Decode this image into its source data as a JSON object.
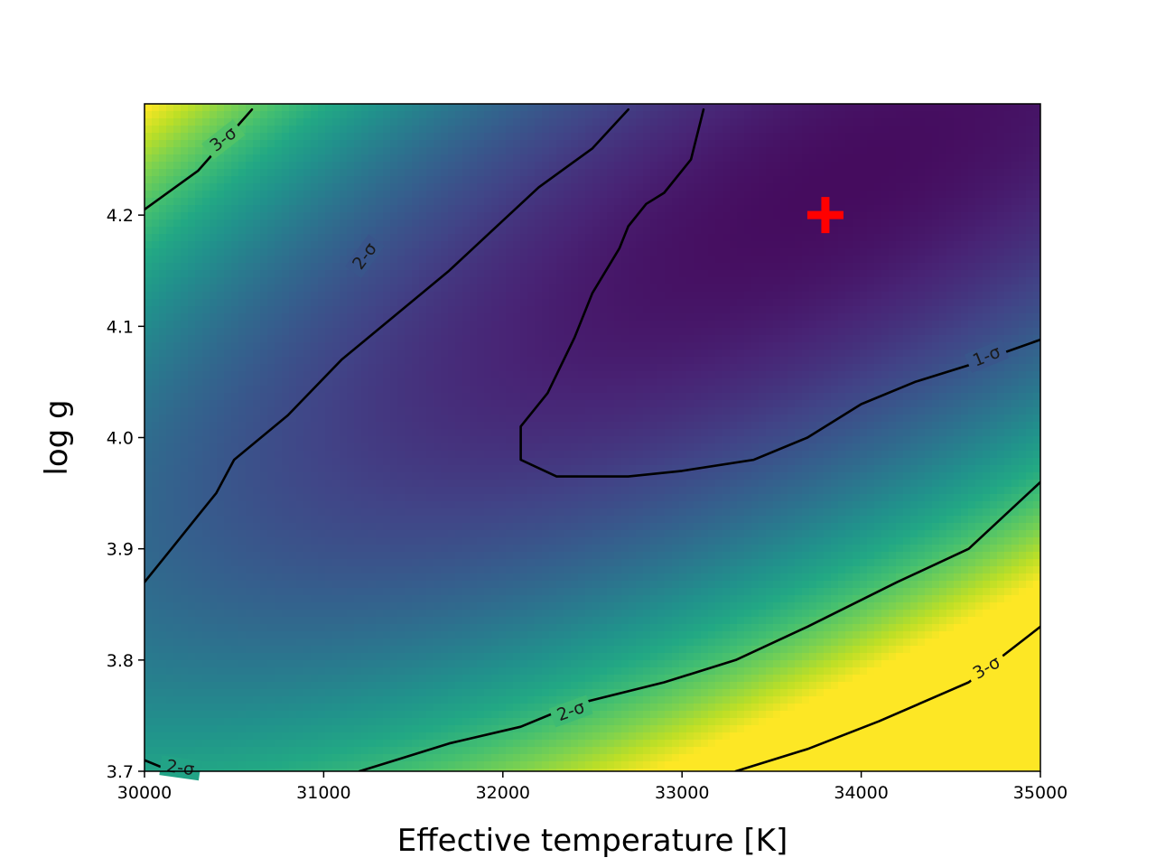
{
  "chart_data": {
    "type": "heatmap",
    "title": "",
    "xlabel": "Effective temperature [K]",
    "ylabel": "log g",
    "xlim": [
      30000,
      35000
    ],
    "ylim": [
      3.7,
      4.3
    ],
    "colormap": "viridis",
    "grid": false,
    "x_ticks": [
      30000,
      31000,
      32000,
      33000,
      34000,
      35000
    ],
    "y_ticks": [
      3.7,
      3.8,
      3.9,
      4.0,
      4.1,
      4.2
    ],
    "x_tick_labels": [
      "30000",
      "31000",
      "32000",
      "33000",
      "34000",
      "35000"
    ],
    "y_tick_labels": [
      "3.7",
      "3.8",
      "3.9",
      "4.0",
      "4.1",
      "4.2"
    ],
    "minimum_marker": {
      "x": 33800,
      "y": 4.2,
      "symbol": "plus",
      "color": "#ff0000"
    },
    "contours": [
      {
        "level": "1-σ",
        "points": [
          [
            33120,
            4.295
          ],
          [
            33050,
            4.25
          ],
          [
            32900,
            4.22
          ],
          [
            32800,
            4.21
          ],
          [
            32700,
            4.19
          ],
          [
            32650,
            4.17
          ],
          [
            32500,
            4.13
          ],
          [
            32400,
            4.09
          ],
          [
            32250,
            4.04
          ],
          [
            32100,
            4.01
          ],
          [
            32100,
            3.98
          ],
          [
            32300,
            3.965
          ],
          [
            32700,
            3.965
          ],
          [
            33000,
            3.97
          ],
          [
            33400,
            3.98
          ],
          [
            33700,
            4.0
          ],
          [
            34000,
            4.03
          ],
          [
            34300,
            4.05
          ],
          [
            34600,
            4.065
          ],
          [
            35000,
            4.088
          ]
        ]
      },
      {
        "level": "2-σ",
        "points": [
          [
            30000,
            3.87
          ],
          [
            30150,
            3.9
          ],
          [
            30300,
            3.93
          ],
          [
            30400,
            3.95
          ],
          [
            30500,
            3.98
          ],
          [
            30800,
            4.02
          ],
          [
            31100,
            4.07
          ],
          [
            31400,
            4.11
          ],
          [
            31700,
            4.15
          ],
          [
            32000,
            4.195
          ],
          [
            32200,
            4.225
          ],
          [
            32500,
            4.26
          ],
          [
            32700,
            4.295
          ]
        ]
      },
      {
        "level": "2-σ",
        "points": [
          [
            31200,
            3.7
          ],
          [
            31400,
            3.71
          ],
          [
            31700,
            3.725
          ],
          [
            32100,
            3.74
          ],
          [
            32400,
            3.76
          ],
          [
            32900,
            3.78
          ],
          [
            33300,
            3.8
          ],
          [
            33700,
            3.83
          ],
          [
            34200,
            3.87
          ],
          [
            34600,
            3.9
          ],
          [
            35000,
            3.96
          ]
        ]
      },
      {
        "level": "2-σ",
        "points": [
          [
            30000,
            3.71
          ],
          [
            30150,
            3.7
          ]
        ]
      },
      {
        "level": "3-σ",
        "points": [
          [
            30000,
            4.205
          ],
          [
            30300,
            4.24
          ],
          [
            30600,
            4.295
          ]
        ]
      },
      {
        "level": "3-σ",
        "points": [
          [
            33300,
            3.7
          ],
          [
            33700,
            3.72
          ],
          [
            34100,
            3.745
          ],
          [
            34600,
            3.78
          ],
          [
            35000,
            3.83
          ]
        ]
      }
    ],
    "contour_labels": [
      {
        "text": "3-σ",
        "x": 30440,
        "y": 4.268,
        "angle": -38
      },
      {
        "text": "2-σ",
        "x": 31230,
        "y": 4.163,
        "angle": -54
      },
      {
        "text": "1-σ",
        "x": 34700,
        "y": 4.073,
        "angle": -22
      },
      {
        "text": "2-σ",
        "x": 32380,
        "y": 3.754,
        "angle": -20
      },
      {
        "text": "3-σ",
        "x": 34700,
        "y": 3.793,
        "angle": -30
      },
      {
        "text": "2-σ",
        "x": 30200,
        "y": 3.703,
        "angle": 8
      }
    ]
  },
  "colors": {
    "contour_line": "#000000",
    "marker": "#ff0000"
  }
}
